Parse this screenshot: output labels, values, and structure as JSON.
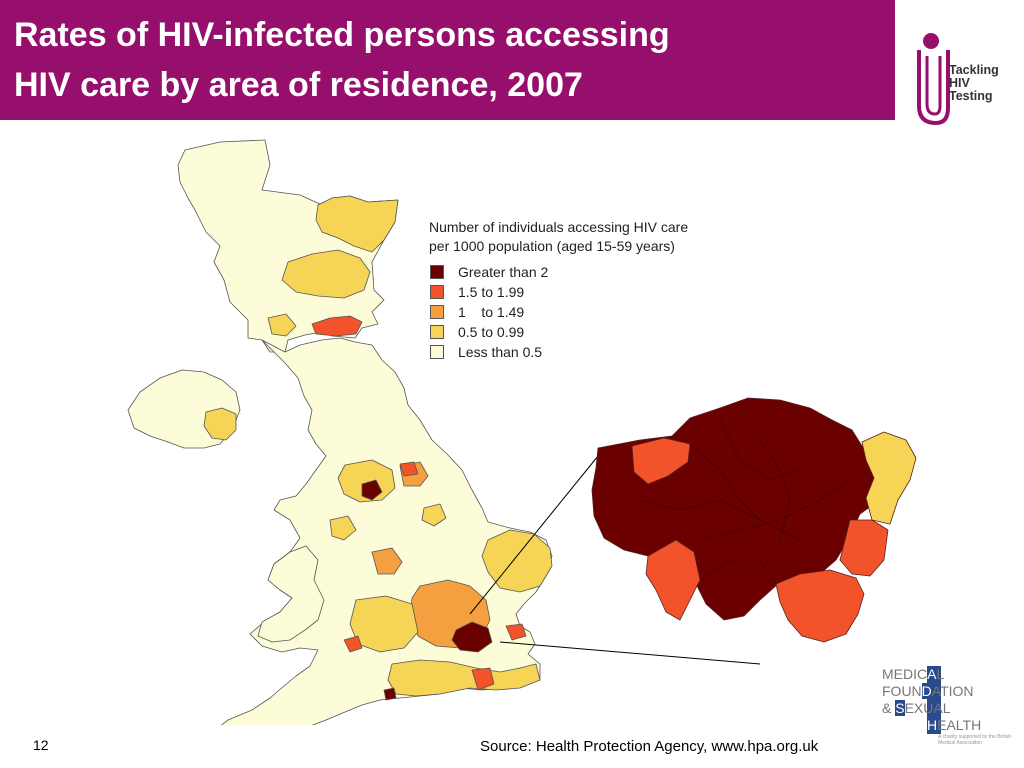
{
  "title": {
    "line1": "Rates of HIV-infected persons accessing",
    "line2": "HIV care by area of residence, 2007"
  },
  "brand": {
    "lines": [
      "Tackling",
      "HIV",
      "Testing"
    ],
    "icon": "tackling-hiv-testing-logo-icon",
    "accent": "#960f6c"
  },
  "legend": {
    "title_line1": "Number of individuals accessing HIV care",
    "title_line2": "per 1000 population (aged 15-59 years)",
    "items": [
      {
        "label": "Greater than 2",
        "color": "#6b0000"
      },
      {
        "label": "1.5 to 1.99",
        "color": "#f2532a"
      },
      {
        "label": "1    to 1.49",
        "color": "#f5a040"
      },
      {
        "label": "0.5 to 0.99",
        "color": "#f5d456"
      },
      {
        "label": "Less than 0.5",
        "color": "#fdfcd8"
      }
    ]
  },
  "colors": {
    "title_bar": "#960f6c",
    "map_border": "#555555"
  },
  "footer": {
    "page_number": "12",
    "source": "Source: Health Protection Agency, www.hpa.org.uk"
  },
  "partner_logo": {
    "rows": [
      {
        "pre": "MEDIC",
        "box": "A",
        "post": "L"
      },
      {
        "pre": "FOUN",
        "box": "D",
        "post": "ATION"
      },
      {
        "pre": "& ",
        "box": "S",
        "post": "EXUAL"
      },
      {
        "pre": "",
        "box": "H",
        "post": "EALTH"
      }
    ],
    "tagline": "A charity supported by the British Medical Association"
  }
}
